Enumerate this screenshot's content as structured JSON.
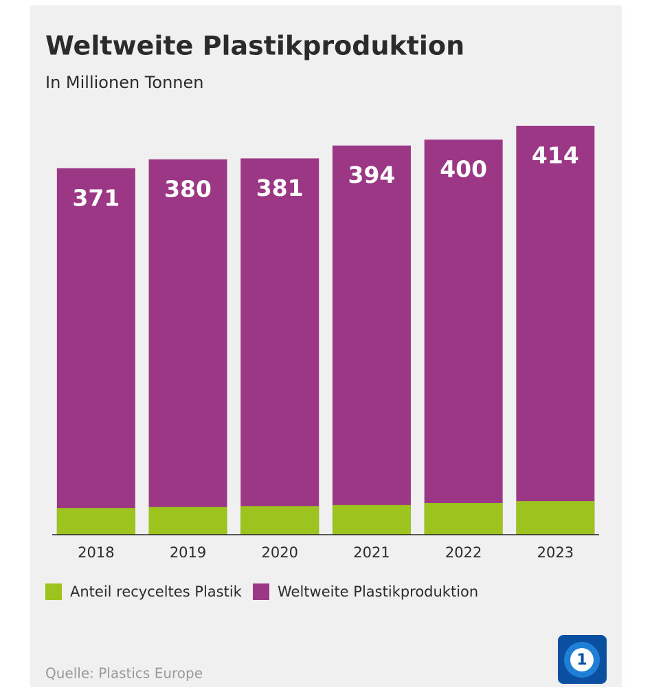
{
  "chart_data": {
    "type": "bar",
    "title": "Weltweite Plastikproduktion",
    "subtitle": "In Millionen Tonnen",
    "categories": [
      "2018",
      "2019",
      "2020",
      "2021",
      "2022",
      "2023"
    ],
    "series": [
      {
        "name": "Anteil recyceltes Plastik",
        "color": "#9cc31e",
        "values": [
          27,
          28,
          29,
          30,
          32,
          34
        ]
      },
      {
        "name": "Weltweite Plastikproduktion",
        "color": "#9c3786",
        "values": [
          371,
          380,
          381,
          394,
          400,
          414
        ]
      }
    ],
    "source": "Quelle: Plastics Europe"
  }
}
